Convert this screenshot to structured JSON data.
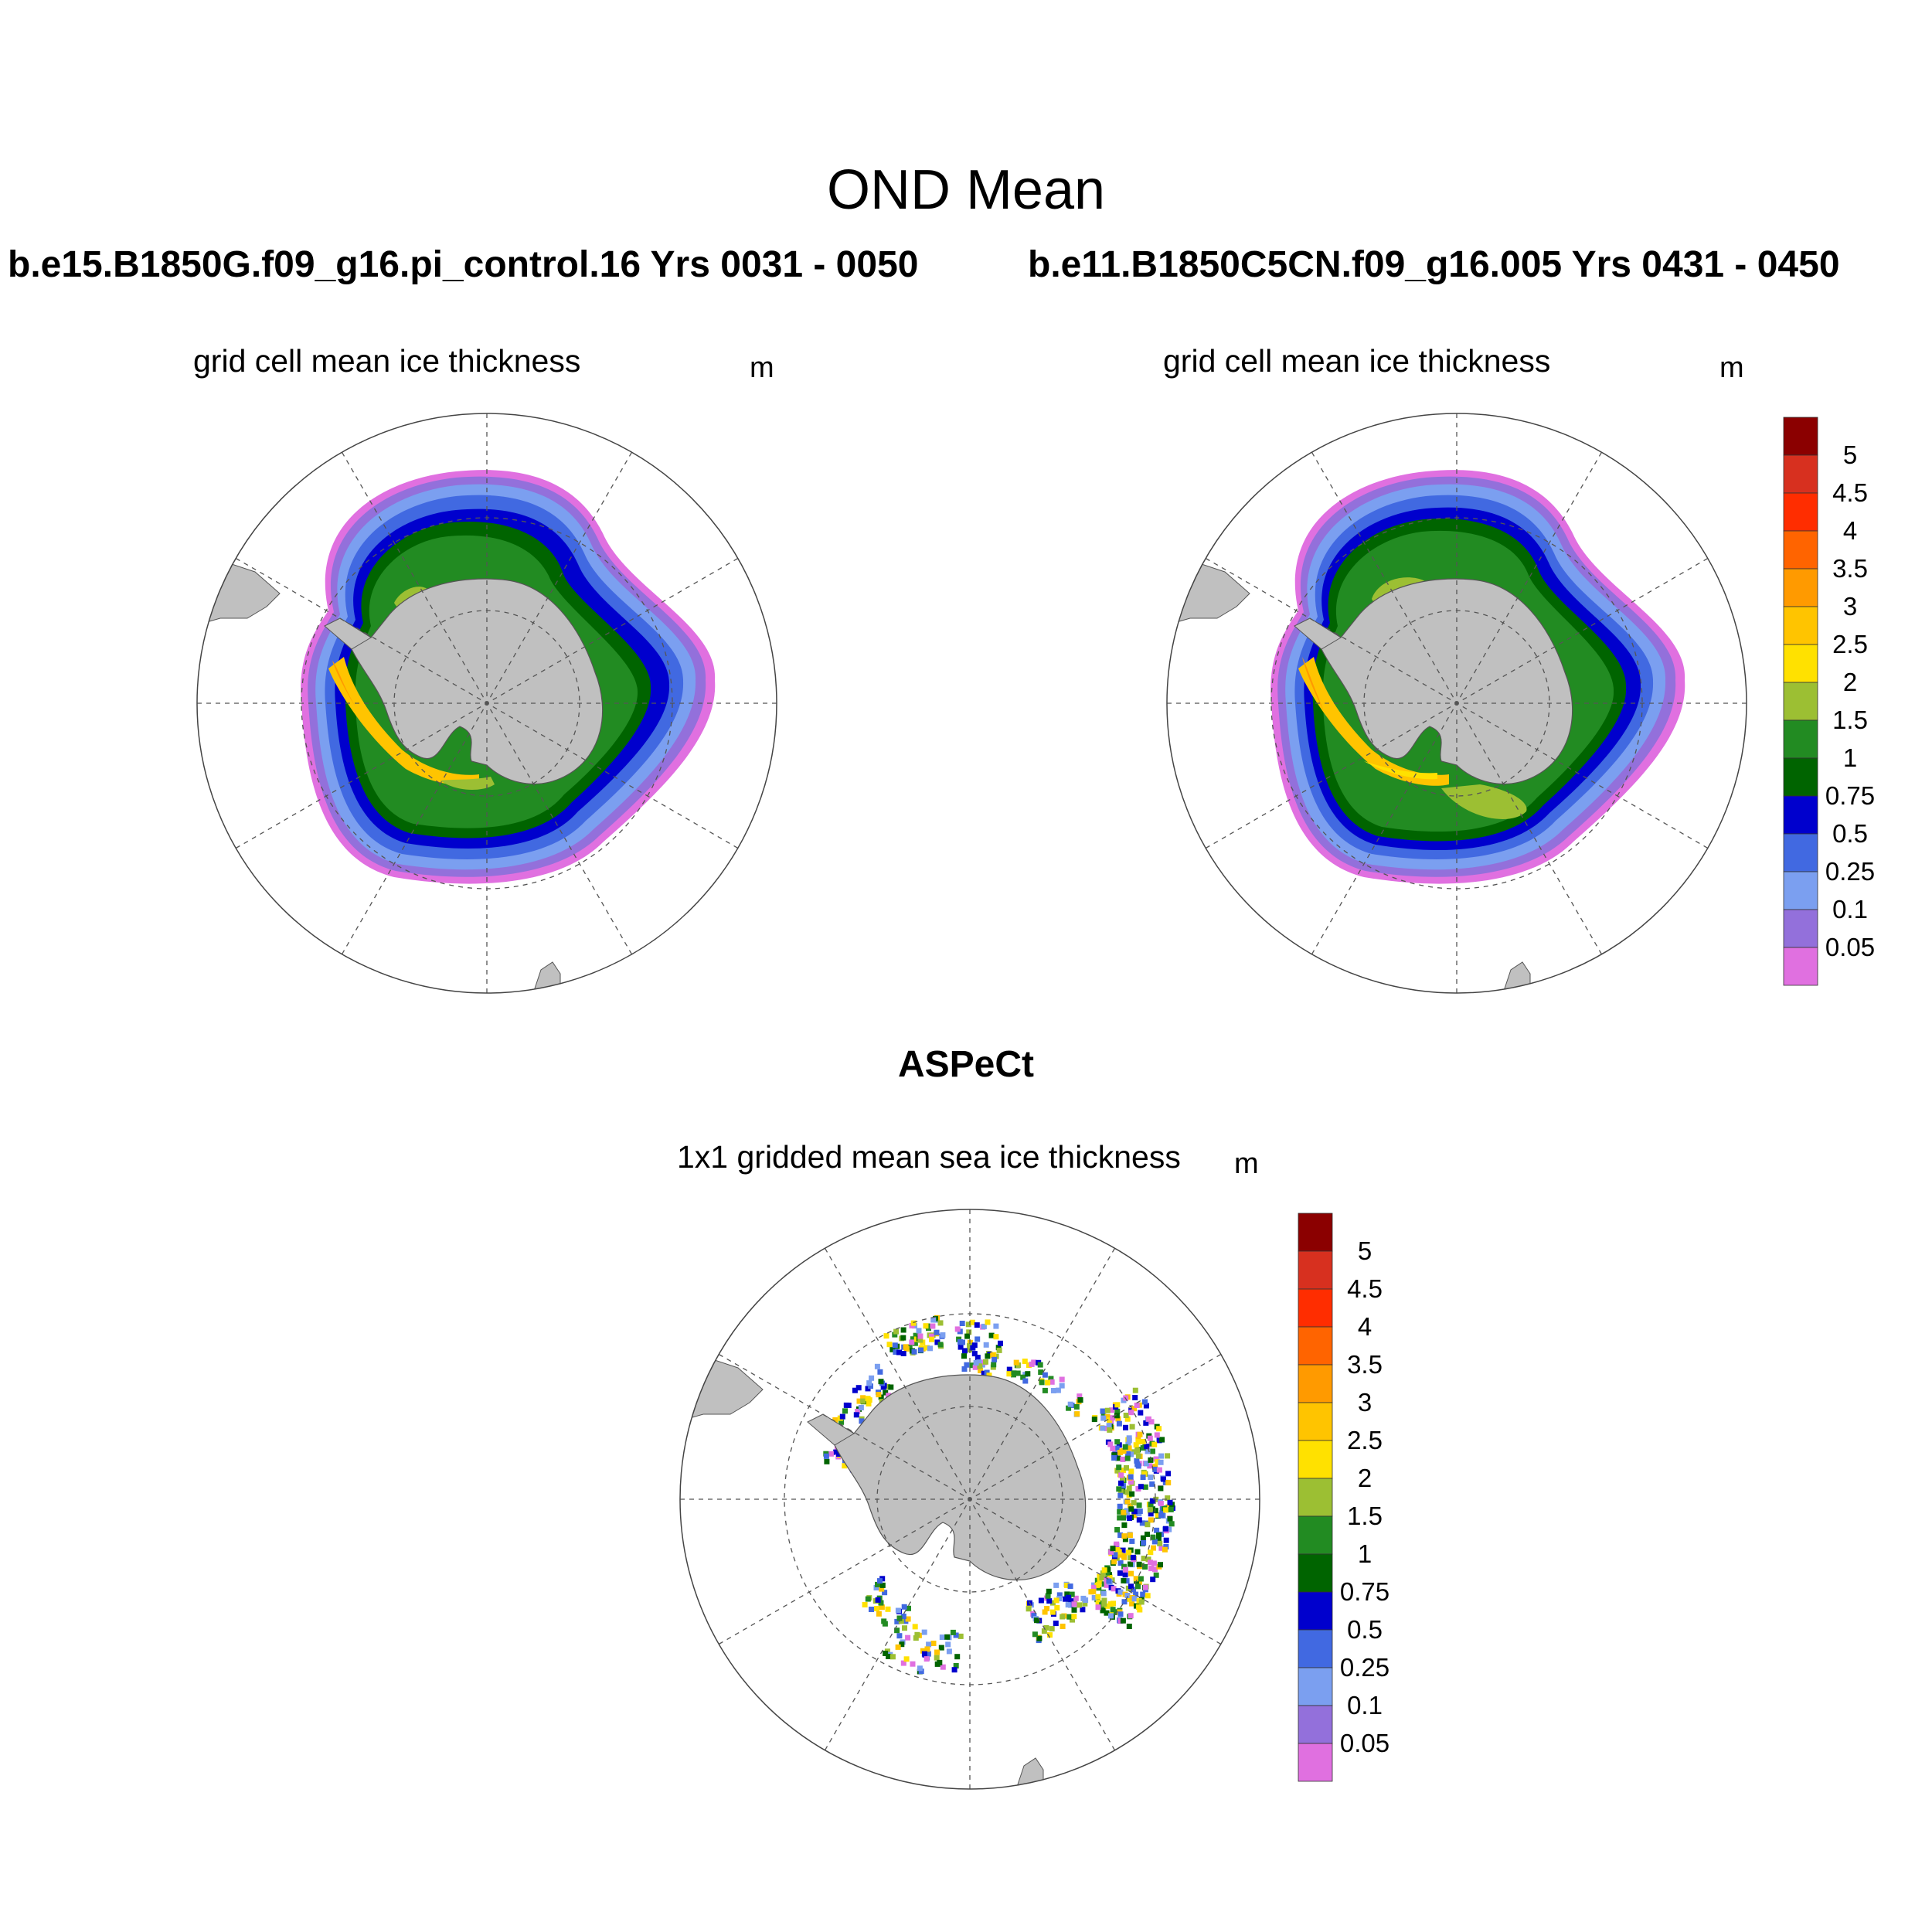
{
  "figure": {
    "title": "OND Mean",
    "panels": [
      {
        "case": "b.e15.B1850G.f09_g16.pi_control.16  Yrs 0031 - 0050",
        "variable": "grid cell mean ice thickness",
        "units": "m"
      },
      {
        "case": "b.e11.B1850C5CN.f09_g16.005  Yrs 0431 - 0450",
        "variable": "grid cell mean ice thickness",
        "units": "m"
      }
    ],
    "observations": {
      "title": "ASPeCt",
      "variable": "1x1 gridded mean sea ice thickness",
      "units": "m"
    }
  },
  "colorbar": {
    "labels": [
      "5",
      "4.5",
      "4",
      "3.5",
      "3",
      "2.5",
      "2",
      "1.5",
      "1",
      "0.75",
      "0.5",
      "0.25",
      "0.1",
      "0.05"
    ],
    "colors_top_to_bottom": [
      "#8b0000",
      "#d7301f",
      "#ff2d00",
      "#ff6400",
      "#ff9a00",
      "#ffc400",
      "#ffe100",
      "#9cbf33",
      "#228b22",
      "#006400",
      "#0000cd",
      "#4169e1",
      "#7b9ff0",
      "#9370db",
      "#e070e0"
    ]
  },
  "map": {
    "projection": "south polar stereographic",
    "land_color": "#c0c0c0",
    "grid": "dashed lat/lon lines"
  }
}
